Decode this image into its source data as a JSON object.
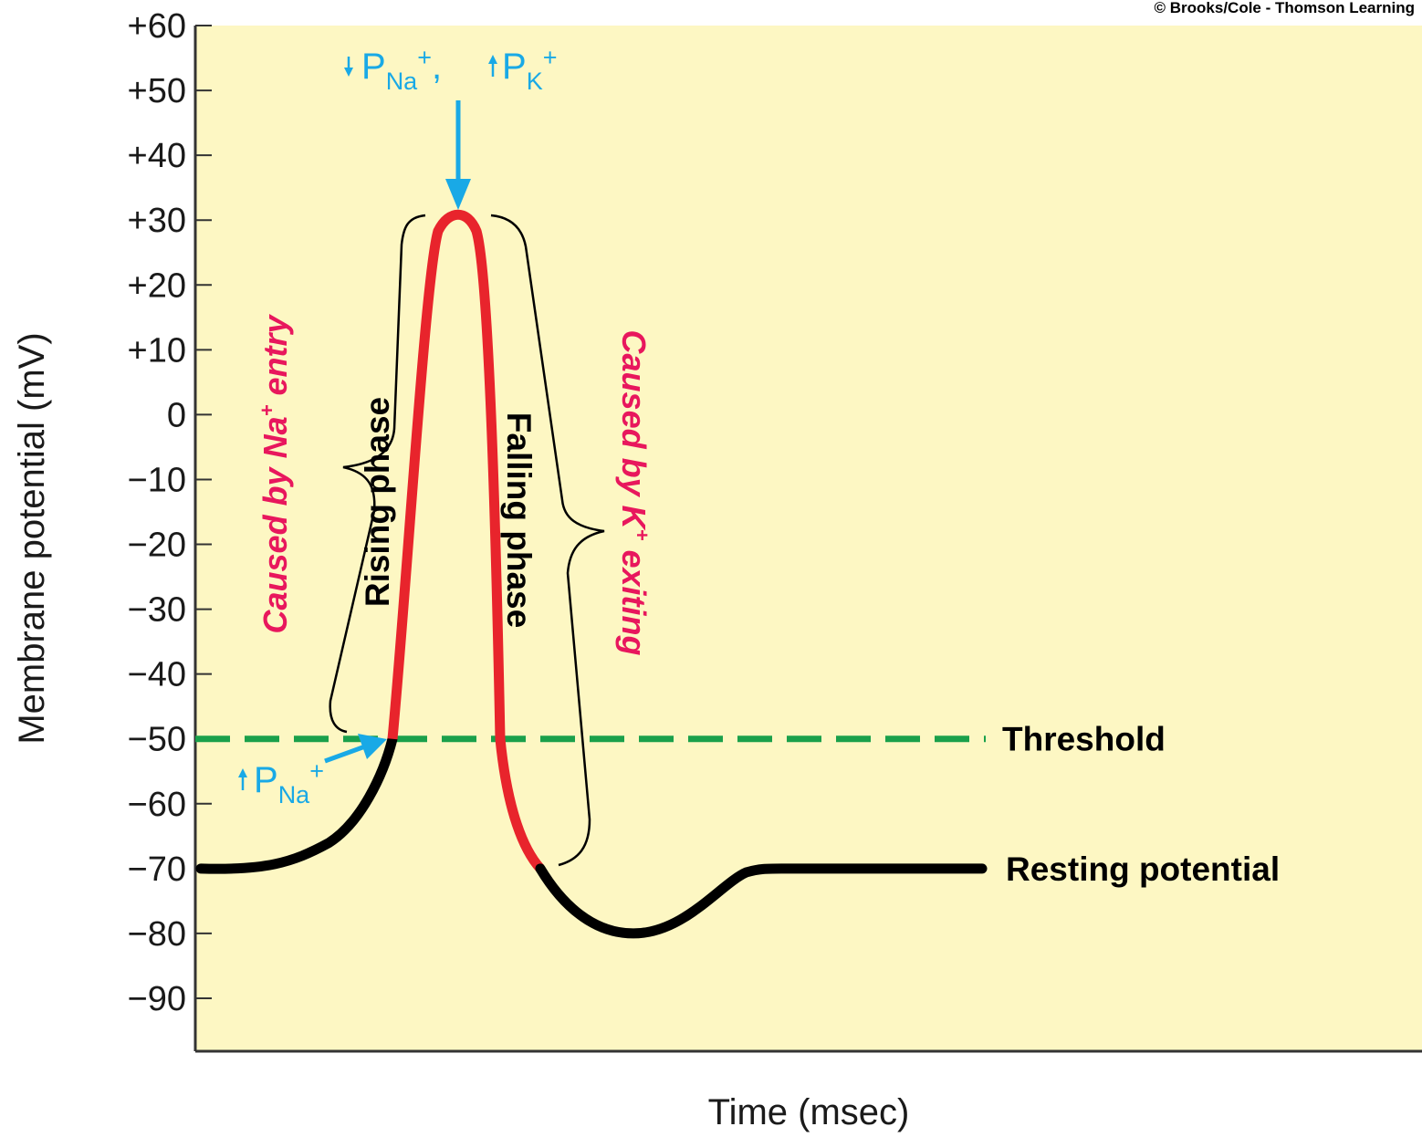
{
  "colors": {
    "background": "#fdf7c3",
    "curve": "#000000",
    "spike": "#e8242c",
    "threshold": "#1aa04b",
    "annotation_blue": "#19a9e6",
    "cause_text": "#e8175d",
    "axis": "#333333"
  },
  "copyright": "© Brooks/Cole - Thomson Learning",
  "annotations": {
    "peak_perm": {
      "na_p": "P",
      "na_sub": "Na",
      "na_sup": "+",
      "sep": ",",
      "k_p": "P",
      "k_sub": "K",
      "k_sup": "+",
      "arrow_na": "down-arrow-icon",
      "arrow_k": "up-arrow-icon"
    },
    "threshold_perm": {
      "p": "P",
      "sub": "Na",
      "sup": "+",
      "arrow": "up-arrow-icon"
    },
    "rising_phase": "Rising phase",
    "falling_phase": "Falling phase",
    "cause_na": {
      "before": "Caused by Na",
      "sup": "+",
      "after": " entry"
    },
    "cause_k": {
      "before": "Caused by K",
      "sup": "+",
      "after": " exiting"
    }
  },
  "chart_data": {
    "type": "line",
    "ylabel": "Membrane potential (mV)",
    "xlabel": "Time (msec)",
    "ylim": [
      -90,
      60
    ],
    "yticks": [
      {
        "value": 60,
        "label": "+60"
      },
      {
        "value": 50,
        "label": "+50"
      },
      {
        "value": 40,
        "label": "+40"
      },
      {
        "value": 30,
        "label": "+30"
      },
      {
        "value": 20,
        "label": "+20"
      },
      {
        "value": 10,
        "label": "+10"
      },
      {
        "value": 0,
        "label": "0"
      },
      {
        "value": -10,
        "label": "−10"
      },
      {
        "value": -20,
        "label": "−20"
      },
      {
        "value": -30,
        "label": "−30"
      },
      {
        "value": -40,
        "label": "−40"
      },
      {
        "value": -50,
        "label": "−50"
      },
      {
        "value": -60,
        "label": "−60"
      },
      {
        "value": -70,
        "label": "−70"
      },
      {
        "value": -80,
        "label": "−80"
      },
      {
        "value": -90,
        "label": "−90"
      }
    ],
    "grid": false,
    "threshold": {
      "value": -50,
      "label": "Threshold",
      "style": "dashed"
    },
    "resting": {
      "value": -70,
      "label": "Resting potential"
    },
    "peak": {
      "value": 30
    }
  }
}
